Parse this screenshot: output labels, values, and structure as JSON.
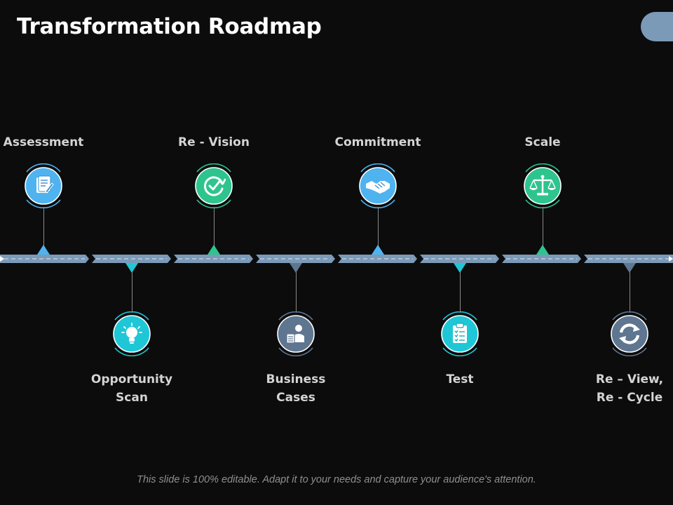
{
  "slide": {
    "title": "Transformation Roadmap",
    "footer": "This slide is 100% editable. Adapt it to your needs and capture your audience's attention."
  },
  "colors": {
    "background": "#0c0c0d",
    "timeline": "#7b9ab8",
    "blue": "#4fb3f0",
    "green": "#2ec48e",
    "cyan": "#1fc7d6",
    "slate": "#5f7690",
    "pill": "#7b9ab8"
  },
  "milestones": [
    {
      "label_line1": "Assessment",
      "label_line2": "",
      "icon": "document-pen-icon",
      "color": "blue",
      "position": "top"
    },
    {
      "label_line1": "Opportunity",
      "label_line2": "Scan",
      "icon": "lightbulb-icon",
      "color": "cyan",
      "position": "bottom"
    },
    {
      "label_line1": "Re - Vision",
      "label_line2": "",
      "icon": "refresh-check-icon",
      "color": "green",
      "position": "top"
    },
    {
      "label_line1": "Business",
      "label_line2": "Cases",
      "icon": "presenter-document-icon",
      "color": "slate",
      "position": "bottom"
    },
    {
      "label_line1": "Commitment",
      "label_line2": "",
      "icon": "handshake-icon",
      "color": "blue",
      "position": "top"
    },
    {
      "label_line1": "Test",
      "label_line2": "",
      "icon": "clipboard-checklist-icon",
      "color": "cyan",
      "position": "bottom"
    },
    {
      "label_line1": "Scale",
      "label_line2": "",
      "icon": "balance-scale-icon",
      "color": "green",
      "position": "top"
    },
    {
      "label_line1": "Re – View,",
      "label_line2": "Re - Cycle",
      "icon": "cycle-arrows-icon",
      "color": "slate",
      "position": "bottom"
    }
  ]
}
